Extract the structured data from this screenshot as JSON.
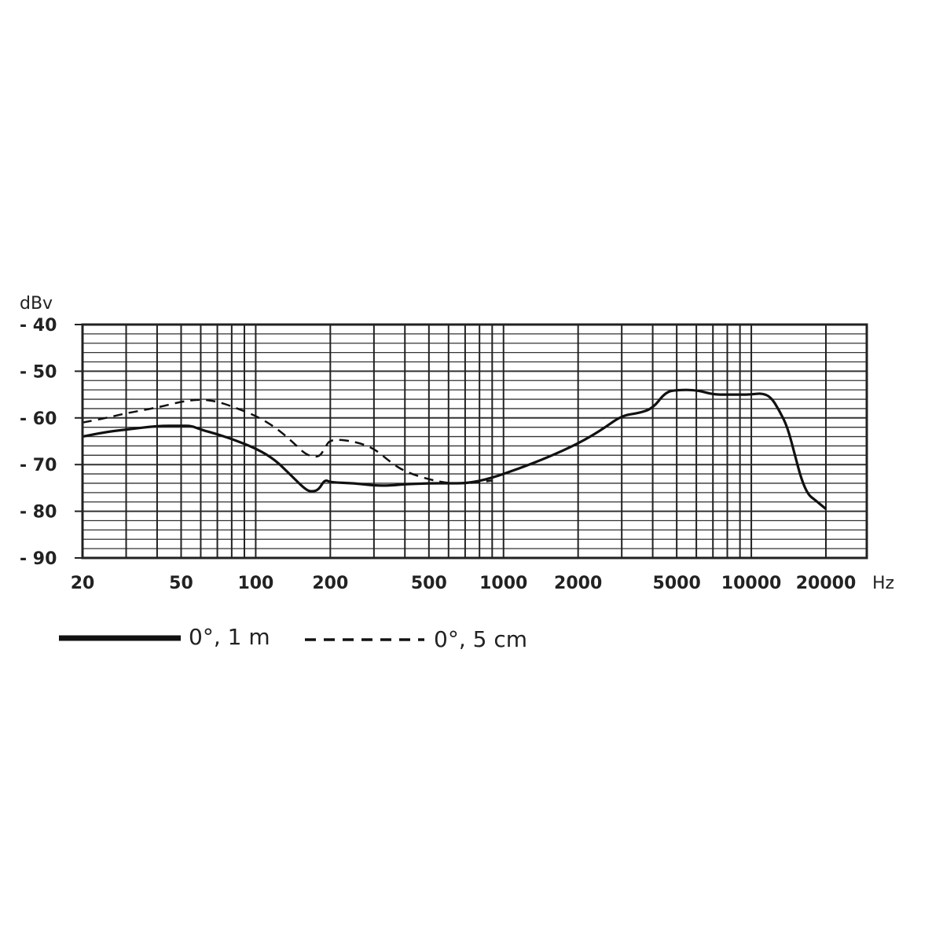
{
  "chart_data": {
    "type": "line",
    "title": "",
    "xlabel": "Hz",
    "ylabel": "dBv",
    "x_scale": "log",
    "xlim": [
      20,
      20000
    ],
    "ylim": [
      -90,
      -40
    ],
    "grid": true,
    "x_tick_labels": [
      "20",
      "50",
      "100",
      "200",
      "500",
      "1000",
      "2000",
      "5000",
      "10000",
      "20000"
    ],
    "y_tick_labels": [
      "- 40",
      "- 50",
      "- 60",
      "- 70",
      "- 80",
      "- 90"
    ],
    "legend_position": "bottom-left",
    "series": [
      {
        "name": "0°, 1 m",
        "style": "solid",
        "x": [
          20,
          25,
          30,
          40,
          50,
          55,
          60,
          70,
          80,
          100,
          120,
          140,
          160,
          170,
          180,
          190,
          200,
          250,
          300,
          350,
          400,
          500,
          600,
          700,
          800,
          900,
          1000,
          1200,
          1500,
          2000,
          2500,
          3000,
          3500,
          4000,
          4500,
          5000,
          6000,
          7000,
          8000,
          9000,
          10000,
          11000,
          12000,
          13000,
          14000,
          15000,
          16000,
          17000,
          18000,
          20000
        ],
        "y": [
          -64,
          -63,
          -62.5,
          -61.7,
          -61.7,
          -61.7,
          -62.5,
          -63.5,
          -64.5,
          -66.5,
          -69,
          -72.5,
          -75.5,
          -75.8,
          -75.3,
          -73.2,
          -73.8,
          -74,
          -74.5,
          -74.5,
          -74.2,
          -74,
          -74,
          -74,
          -73.5,
          -72.8,
          -72,
          -70.5,
          -68.5,
          -65.5,
          -62.5,
          -59.5,
          -59,
          -58,
          -54.5,
          -54,
          -54,
          -55,
          -55,
          -55,
          -55,
          -54.7,
          -55.5,
          -58.5,
          -62,
          -68,
          -73.5,
          -76.5,
          -77.5,
          -79.5
        ]
      },
      {
        "name": "0°, 5 cm",
        "style": "dashed",
        "x": [
          20,
          25,
          30,
          40,
          50,
          60,
          70,
          80,
          100,
          120,
          140,
          160,
          180,
          190,
          200,
          250,
          300,
          350,
          400,
          500,
          600,
          700,
          800,
          900
        ],
        "y": [
          -61,
          -60,
          -59,
          -57.8,
          -56.5,
          -56,
          -56.5,
          -57.5,
          -59.5,
          -62,
          -65,
          -68,
          -68.5,
          -66.5,
          -64.5,
          -65,
          -66.5,
          -69.5,
          -71.5,
          -73.2,
          -74,
          -74,
          -73.8,
          -73.4
        ]
      }
    ]
  }
}
